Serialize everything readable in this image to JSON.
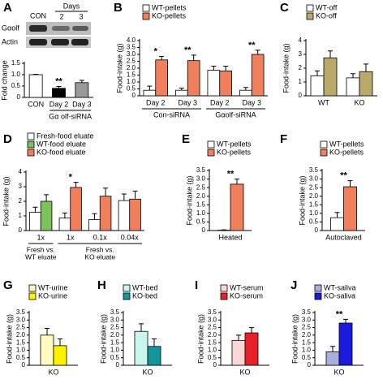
{
  "chart_data": [
    {
      "type": "bar",
      "panel": "A",
      "ylabel": "Fold change",
      "blot": {
        "header": "Days",
        "lanes": [
          "CON",
          "2",
          "3"
        ],
        "rows": [
          "Gαolf",
          "Actin"
        ]
      },
      "categories": [
        "CON",
        "Day 2",
        "Day 3"
      ],
      "values": [
        1.0,
        0.4,
        0.65
      ],
      "errors": [
        0.02,
        0.08,
        0.1
      ],
      "colors": [
        "#ffffff",
        "#000000",
        "#999999"
      ],
      "significance": [
        null,
        "**",
        null
      ],
      "groups": [
        null,
        "Gα olf-siRNA",
        null
      ],
      "ylim": [
        0,
        1.5
      ],
      "yticks": [
        0,
        0.5,
        {
          "value": 1,
          "label": "1.0"
        },
        1.5
      ]
    },
    {
      "type": "bar",
      "panel": "B",
      "ylabel": "Food-intake (g)",
      "categories": [
        "Day 2",
        "Day 3",
        "Day 2",
        "Day 3"
      ],
      "groups": [
        "Con-siRNA",
        null,
        "Gαolf-siRNA",
        null
      ],
      "series": [
        {
          "name": "WT-pellets",
          "color": "#ffffff",
          "values": [
            0.4,
            0.4,
            1.85,
            0.4
          ],
          "errors": [
            0.3,
            0.15,
            0.3,
            0.2
          ]
        },
        {
          "name": "KO-pellets",
          "color": "#f07f5e",
          "values": [
            2.6,
            2.55,
            1.8,
            3.0
          ],
          "errors": [
            0.25,
            0.4,
            0.35,
            0.3
          ]
        }
      ],
      "significance": [
        "*",
        "**",
        null,
        "**"
      ],
      "ylim": [
        0,
        4
      ],
      "yticks": [
        0,
        0.5,
        {
          "value": 1,
          "label": "1.0"
        },
        1.5,
        {
          "value": 2,
          "label": "2.0"
        },
        2.5,
        {
          "value": 3,
          "label": "3.0"
        },
        3.5,
        {
          "value": 4,
          "label": "4.0"
        }
      ]
    },
    {
      "type": "bar",
      "panel": "C",
      "ylabel": "Food-intake (g)",
      "categories": [
        "WT",
        "KO"
      ],
      "series": [
        {
          "name": "WT-off",
          "color": "#ffffff",
          "values": [
            1.45,
            1.3
          ],
          "errors": [
            0.35,
            0.3
          ]
        },
        {
          "name": "KO-off",
          "color": "#b9aa6a",
          "values": [
            2.75,
            1.75
          ],
          "errors": [
            0.5,
            0.55
          ]
        }
      ],
      "ylim": [
        0,
        4
      ],
      "yticks": [
        0,
        1,
        2,
        3,
        4
      ]
    },
    {
      "type": "bar",
      "panel": "D",
      "ylabel": "Food-intake (g)",
      "categories": [
        "1x",
        "1x",
        "0.1x",
        "0.04x"
      ],
      "groups": [
        [
          "Fresh vs.",
          "WT eluate"
        ],
        [
          "Fresh vs.",
          "KO eluate"
        ],
        null,
        null
      ],
      "series": [
        {
          "name": "Fresh-food  eluate",
          "color": "#ffffff",
          "values": [
            1.25,
            0.85,
            0.75,
            2.05
          ],
          "errors": [
            0.35,
            0.35,
            0.4,
            0.45
          ]
        },
        {
          "name": "WT-food  eluate",
          "color": "#7dc25a",
          "values": [
            2.0,
            null,
            null,
            null
          ],
          "errors": [
            0.45,
            null,
            null,
            null
          ]
        },
        {
          "name": "KO-food  eluate",
          "color": "#f07f5e",
          "values": [
            null,
            2.95,
            2.35,
            2.15
          ],
          "errors": [
            null,
            0.35,
            0.55,
            0.55
          ]
        }
      ],
      "significance": [
        null,
        "*",
        null,
        null
      ],
      "ylim": [
        0,
        4
      ],
      "yticks": [
        0,
        1,
        2,
        3,
        4
      ]
    },
    {
      "type": "bar",
      "panel": "E",
      "ylabel": "Food-intake (g)",
      "categories": [
        "Heated"
      ],
      "series": [
        {
          "name": "WT-pellets",
          "color": "#ffffff",
          "values": [
            0.02
          ],
          "errors": [
            0.02
          ]
        },
        {
          "name": "KO-pellets",
          "color": "#f07f5e",
          "values": [
            2.7
          ],
          "errors": [
            0.3
          ]
        }
      ],
      "significance": [
        "**"
      ],
      "ylim": [
        0,
        3.5
      ],
      "yticks": [
        0,
        0.5,
        {
          "value": 1,
          "label": "1.0"
        },
        1.5,
        {
          "value": 2,
          "label": "2.0"
        },
        2.5,
        {
          "value": 3,
          "label": "3.0"
        },
        3.5
      ]
    },
    {
      "type": "bar",
      "panel": "F",
      "ylabel": "Food-intake (g)",
      "categories": [
        "Autoclaved"
      ],
      "series": [
        {
          "name": "WT-pellets",
          "color": "#ffffff",
          "values": [
            0.75
          ],
          "errors": [
            0.3
          ]
        },
        {
          "name": "KO-pellets",
          "color": "#f07f5e",
          "values": [
            2.55
          ],
          "errors": [
            0.35
          ]
        }
      ],
      "significance": [
        "**"
      ],
      "ylim": [
        0,
        3.5
      ],
      "yticks": [
        0,
        0.5,
        {
          "value": 1,
          "label": "1.0"
        },
        1.5,
        {
          "value": 2,
          "label": "2.0"
        },
        2.5,
        {
          "value": 3,
          "label": "3.0"
        },
        3.5
      ]
    },
    {
      "type": "bar",
      "panel": "G",
      "ylabel": "Food-intake (g)",
      "categories": [
        "KO"
      ],
      "series": [
        {
          "name": "WT-urine",
          "color": "#fffbc2",
          "values": [
            2.0
          ],
          "errors": [
            0.45
          ]
        },
        {
          "name": "KO-urine",
          "color": "#fff200",
          "values": [
            1.3
          ],
          "errors": [
            0.45
          ]
        }
      ],
      "ylim": [
        0,
        3.5
      ],
      "yticks": [
        0,
        0.5,
        {
          "value": 1,
          "label": "1.0"
        },
        1.5,
        {
          "value": 2,
          "label": "2.0"
        },
        2.5,
        {
          "value": 3,
          "label": "3.0"
        },
        3.5
      ]
    },
    {
      "type": "bar",
      "panel": "H",
      "ylabel": "Food-intake (g)",
      "categories": [
        "KO"
      ],
      "series": [
        {
          "name": "WT-bed",
          "color": "#c8f5ee",
          "values": [
            2.25
          ],
          "errors": [
            0.5
          ]
        },
        {
          "name": "KO-bed",
          "color": "#14959a",
          "values": [
            1.25
          ],
          "errors": [
            0.5
          ]
        }
      ],
      "ylim": [
        0,
        3.5
      ],
      "yticks": [
        0,
        0.5,
        {
          "value": 1,
          "label": "1.0"
        },
        1.5,
        {
          "value": 2,
          "label": "2.0"
        },
        2.5,
        {
          "value": 3,
          "label": "3.0"
        },
        3.5
      ]
    },
    {
      "type": "bar",
      "panel": "I",
      "ylabel": "Food-intake (g)",
      "categories": [
        "KO"
      ],
      "series": [
        {
          "name": "WT-serum",
          "color": "#fbd6d6",
          "values": [
            1.65
          ],
          "errors": [
            0.35
          ]
        },
        {
          "name": "KO-serum",
          "color": "#e8202a",
          "values": [
            2.15
          ],
          "errors": [
            0.35
          ]
        }
      ],
      "ylim": [
        0,
        3.5
      ],
      "yticks": [
        0,
        0.5,
        {
          "value": 1,
          "label": "1.0"
        },
        1.5,
        {
          "value": 2,
          "label": "2.0"
        },
        2.5,
        {
          "value": 3,
          "label": "3.0"
        },
        3.5
      ]
    },
    {
      "type": "bar",
      "panel": "J",
      "ylabel": "Food-intake (g)",
      "categories": [
        "KO"
      ],
      "series": [
        {
          "name": "WT-saliva",
          "color": "#aaaedd",
          "values": [
            0.9
          ],
          "errors": [
            0.35
          ]
        },
        {
          "name": "KO-saliva",
          "color": "#1a1adc",
          "values": [
            2.8
          ],
          "errors": [
            0.25
          ]
        }
      ],
      "significance": [
        "**"
      ],
      "ylim": [
        0,
        3.5
      ],
      "yticks": [
        0,
        0.5,
        {
          "value": 1,
          "label": "1.0"
        },
        1.5,
        {
          "value": 2,
          "label": "2.0"
        },
        2.5,
        {
          "value": 3,
          "label": "3.0"
        },
        3.5
      ]
    }
  ]
}
